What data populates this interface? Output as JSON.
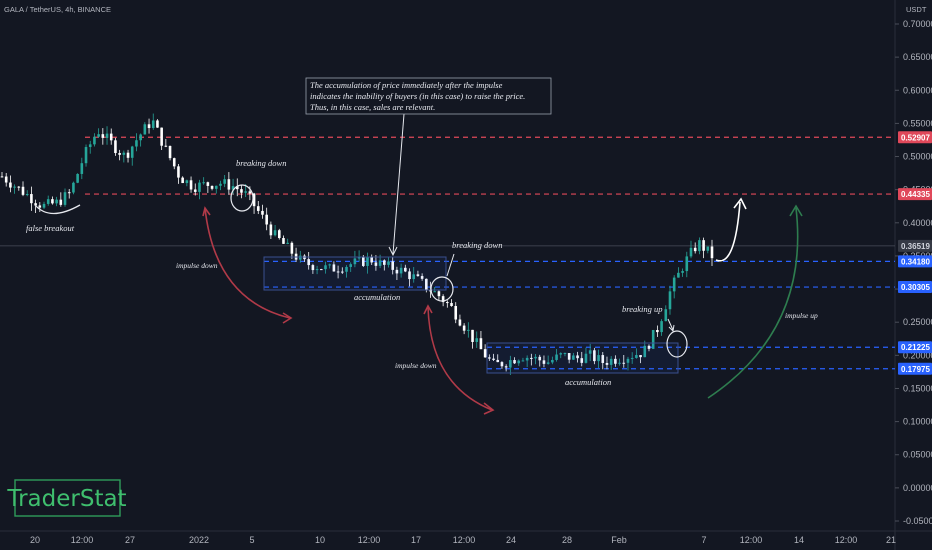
{
  "header": {
    "symbol_info": "GALA / TetherUS, 4h, BINANCE",
    "currency": "USDT"
  },
  "watermark": {
    "text": "TraderStat"
  },
  "colors": {
    "background": "#131722",
    "up": "#26a69a",
    "down": "#ffffff",
    "red_level": "#e0485a",
    "blue_level": "#2962ff",
    "green_arrow": "#2e7d4f",
    "red_arrow": "#b03a48"
  },
  "chart_data": {
    "type": "candlestick",
    "y_axis": {
      "ticks": [
        "0.70000",
        "0.65000",
        "0.60000",
        "0.55000",
        "0.50000",
        "0.45000",
        "0.40000",
        "0.35000",
        "0.30000",
        "0.25000",
        "0.20000",
        "0.15000",
        "0.10000",
        "0.05000",
        "0.00000",
        "-0.05000"
      ],
      "ylim": [
        -0.05,
        0.7
      ]
    },
    "x_axis": {
      "ticks": [
        "20",
        "12:00",
        "27",
        "2022",
        "5",
        "10",
        "12:00",
        "17",
        "12:00",
        "24",
        "28",
        "Feb",
        "7",
        "12:00",
        "14",
        "12:00",
        "21"
      ]
    },
    "price_labels": [
      {
        "value": "0.52907",
        "kind": "red-level"
      },
      {
        "value": "0.44335",
        "kind": "red-level"
      },
      {
        "value": "0.36519",
        "kind": "last-price"
      },
      {
        "value": "0.34180",
        "kind": "blue-level"
      },
      {
        "value": "0.30305",
        "kind": "blue-level"
      },
      {
        "value": "0.21225",
        "kind": "blue-level"
      },
      {
        "value": "0.17975",
        "kind": "blue-level"
      }
    ],
    "levels": [
      {
        "price": 0.52907,
        "color": "red"
      },
      {
        "price": 0.44335,
        "color": "red"
      },
      {
        "price": 0.3418,
        "color": "blue"
      },
      {
        "price": 0.30305,
        "color": "blue"
      },
      {
        "price": 0.21225,
        "color": "blue"
      },
      {
        "price": 0.17975,
        "color": "blue"
      }
    ],
    "last_price": 0.36519,
    "close_path": [
      0.47,
      0.455,
      0.44,
      0.425,
      0.43,
      0.445,
      0.5,
      0.54,
      0.52,
      0.5,
      0.53,
      0.555,
      0.51,
      0.47,
      0.455,
      0.458,
      0.46,
      0.455,
      0.44,
      0.41,
      0.38,
      0.36,
      0.34,
      0.335,
      0.33,
      0.335,
      0.34,
      0.345,
      0.335,
      0.33,
      0.32,
      0.305,
      0.29,
      0.27,
      0.24,
      0.21,
      0.185,
      0.19,
      0.2,
      0.195,
      0.19,
      0.2,
      0.195,
      0.2,
      0.19,
      0.195,
      0.2,
      0.205,
      0.24,
      0.3,
      0.34,
      0.37,
      0.35
    ]
  },
  "annotations": {
    "note": "The accumulation of price immediately after the impulse\nindicates the inability of buyers (in this case) to raise the price.\nThus, in this case, sales are relevant.",
    "breaking_down_1": "breaking down",
    "breaking_down_2": "breaking down",
    "breaking_up": "breaking up",
    "false_breakout": "false breakout",
    "impulse_down_1": "impulse down",
    "impulse_down_2": "impulse down",
    "impulse_up": "impulse up",
    "accumulation_1": "accumulation",
    "accumulation_2": "accumulation"
  }
}
